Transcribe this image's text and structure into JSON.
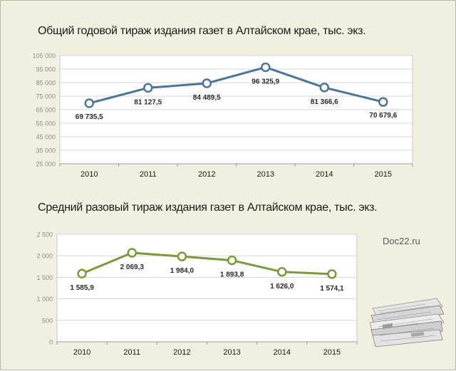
{
  "watermark": "Doc22.ru",
  "chart_data": [
    {
      "type": "line",
      "title": "Общий годовой тираж издания газет в Алтайском крае, тыс. экз.",
      "categories": [
        "2010",
        "2011",
        "2012",
        "2013",
        "2014",
        "2015"
      ],
      "series": [
        {
          "values": [
            69735.5,
            81127.5,
            84489.5,
            96325.9,
            81366.6,
            70679.6
          ],
          "labels": [
            "69 735,5",
            "81 127,5",
            "84 489,5",
            "96 325,9",
            "81 366,6",
            "70 679,6"
          ]
        }
      ],
      "ylim": [
        25000,
        105000
      ],
      "yticks": [
        25000,
        35000,
        45000,
        55000,
        65000,
        75000,
        85000,
        95000,
        105000
      ],
      "ytick_labels": [
        "25 000",
        "35 000",
        "45 000",
        "55 000",
        "65 000",
        "75 000",
        "85 000",
        "95 000",
        "105 000"
      ],
      "grid": true,
      "line_color": "#4a74a0"
    },
    {
      "type": "line",
      "title": "Средний разовый тираж издания газет в Алтайском крае, тыс. экз.",
      "categories": [
        "2010",
        "2011",
        "2012",
        "2013",
        "2014",
        "2015"
      ],
      "series": [
        {
          "values": [
            1585.9,
            2069.3,
            1984.0,
            1893.8,
            1626.0,
            1574.1
          ],
          "labels": [
            "1 585,9",
            "2 069,3",
            "1 984,0",
            "1 893,8",
            "1 626,0",
            "1 574,1"
          ]
        }
      ],
      "ylim": [
        0,
        2500
      ],
      "yticks": [
        0,
        500,
        1000,
        1500,
        2000,
        2500
      ],
      "ytick_labels": [
        "0",
        "500",
        "1 000",
        "1 500",
        "2 000",
        "2 500"
      ],
      "grid": true,
      "line_color": "#7a9a3a"
    }
  ]
}
